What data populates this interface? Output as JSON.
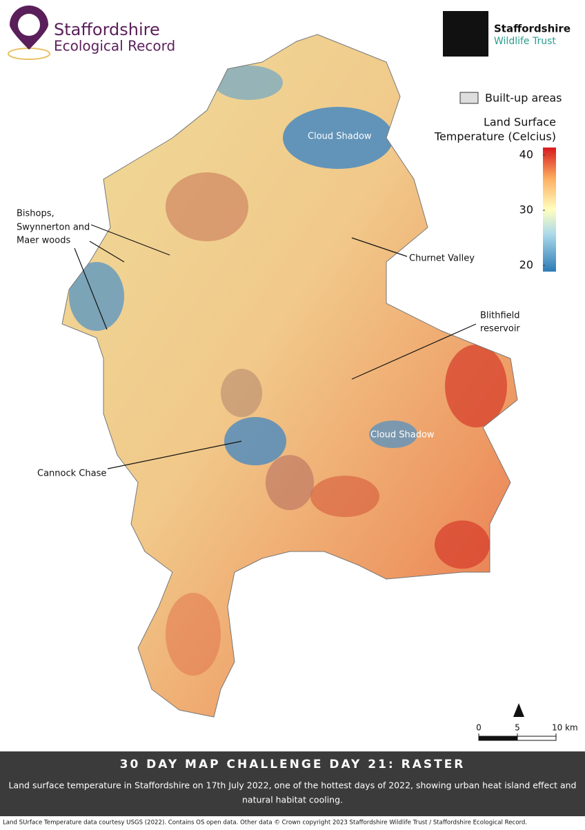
{
  "header": {
    "left_logo": [
      "Staffordshire",
      "Ecological Record"
    ],
    "right_logo": [
      "Staffordshire",
      "Wildlife Trust"
    ]
  },
  "legend": {
    "built_up": "Built-up areas",
    "title": [
      "Land Surface",
      "Temperature (Celcius)"
    ],
    "ticks": [
      40,
      30,
      20
    ]
  },
  "annotations": {
    "cloud_shadow_north": "Cloud Shadow",
    "cloud_shadow_south": "Cloud Shadow",
    "bishops": [
      "Bishops,",
      "Swynnerton and",
      "Maer woods"
    ],
    "churnet": "Churnet Valley",
    "blithfield": [
      "Blithfield",
      "reservoir"
    ],
    "cannock": "Cannock Chase"
  },
  "scale_bar": {
    "ticks": [
      0,
      5,
      {
        "value": 10,
        "label": "10 km"
      }
    ]
  },
  "footer": {
    "title": "30 DAY MAP CHALLENGE DAY 21: RASTER",
    "caption": [
      "Land surface temperature in Staffordshire on 17th July 2022, one of the hottest days of 2022, showing urban heat island effect and",
      "natural habitat cooling."
    ],
    "credit": "Land SUrface Temperature data courtesy USGS (2022). Contains OS open data. Other data © Crown copyright 2023 Staffordshire Wildlife Trust / Staffordshire Ecological Record."
  }
}
